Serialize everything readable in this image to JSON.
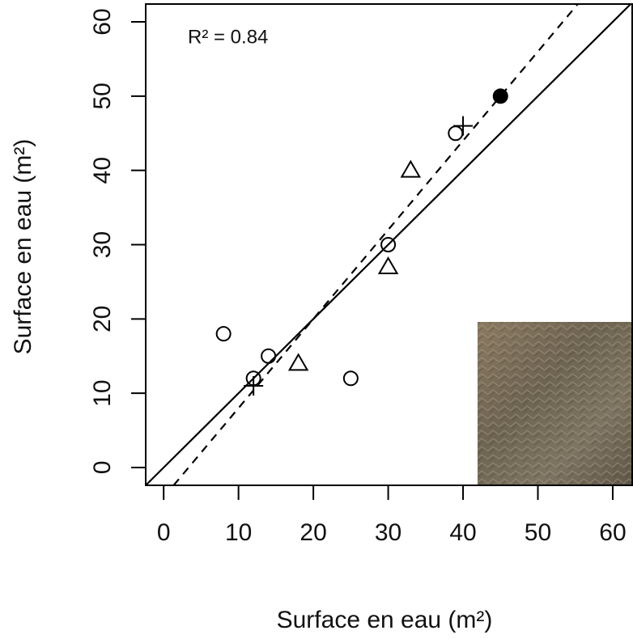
{
  "chart_data": {
    "type": "scatter",
    "x_label": "Surface en eau (m²)",
    "y_label": "Surface en eau (m²)",
    "annotation": "R² = 0.84",
    "xlim": [
      -2.4,
      62.6
    ],
    "ylim": [
      -2.4,
      62.4
    ],
    "xticks": [
      0,
      10,
      20,
      30,
      40,
      50,
      60
    ],
    "yticks": [
      0,
      10,
      20,
      30,
      40,
      50,
      60
    ],
    "series": [
      {
        "marker": "open-circle",
        "color": "#000000",
        "x": [
          8,
          12,
          14,
          25,
          30,
          39
        ],
        "values": [
          18,
          12,
          15,
          12,
          30,
          45
        ]
      },
      {
        "marker": "triangle",
        "color": "#000000",
        "x": [
          18,
          30,
          33
        ],
        "values": [
          14,
          27,
          40
        ]
      },
      {
        "marker": "plus",
        "color": "#000000",
        "x": [
          12,
          40
        ],
        "values": [
          11,
          46
        ]
      },
      {
        "marker": "filled-circle",
        "color": "#000000",
        "x": [
          45
        ],
        "values": [
          50
        ]
      }
    ],
    "lines": [
      {
        "slope": 1,
        "intercept": 0,
        "dashed": false
      },
      {
        "slope": 1.2,
        "intercept": -4,
        "dashed": true
      }
    ]
  }
}
